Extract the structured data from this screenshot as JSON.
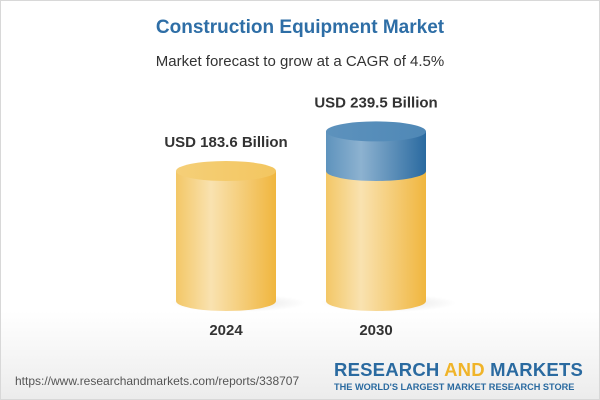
{
  "title": "Construction Equipment Market",
  "subtitle": "Market forecast to grow at a CAGR of 4.5%",
  "chart_data": {
    "type": "bar",
    "style": "3d-cylinder",
    "categories": [
      "2024",
      "2030"
    ],
    "values": [
      183.6,
      239.5
    ],
    "data_labels": [
      "USD 183.6 Billion",
      "USD 239.5 Billion"
    ],
    "unit": "USD Billion",
    "cagr": "4.5%",
    "colors": {
      "base": "#f2c14e",
      "growth": "#3f7fb0"
    }
  },
  "footer": {
    "url": "https://www.researchandmarkets.com/reports/338707",
    "logo_part1": "RESEARCH ",
    "logo_part2": "AND",
    "logo_part3": " MARKETS",
    "tagline": "THE WORLD'S LARGEST MARKET RESEARCH STORE"
  }
}
